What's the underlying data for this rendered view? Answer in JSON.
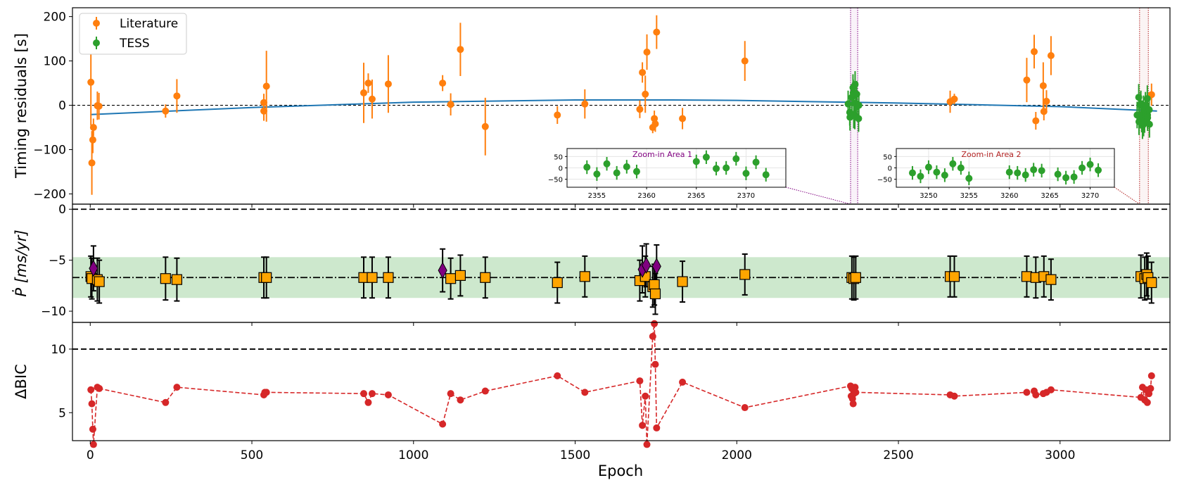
{
  "colors": {
    "literature": "#ff7f0e",
    "tess": "#2ca02c",
    "fit": "#1f77b4",
    "bic": "#d62728",
    "band": "#2ca02c",
    "square": "#ffa500",
    "diamond": "#800080",
    "zoom1": "#800080",
    "zoom2": "#b22222"
  },
  "chart_data": [
    {
      "type": "scatter",
      "panel": "timing-residuals",
      "ylabel": "Timing residuals [s]",
      "ylim": [
        -223,
        220
      ],
      "yticks": [
        "200",
        "100",
        "0",
        "−100",
        "−200"
      ],
      "ytick_values": [
        200,
        100,
        0,
        -100,
        -200
      ],
      "legend": {
        "placement": "top-left",
        "entries": [
          "Literature",
          "TESS"
        ]
      },
      "fit_curve": {
        "x": [
          0,
          500,
          1000,
          1500,
          1800,
          2000,
          2500,
          3000,
          3300
        ],
        "y": [
          -21,
          -5,
          7,
          12,
          12,
          11,
          5,
          -3,
          -13
        ]
      },
      "literature": [
        {
          "x": 2,
          "y": 52,
          "e": 98
        },
        {
          "x": 5,
          "y": -130,
          "e": 72
        },
        {
          "x": 8,
          "y": -78,
          "e": 30
        },
        {
          "x": 10,
          "y": -50,
          "e": 20
        },
        {
          "x": 22,
          "y": -1,
          "e": 32
        },
        {
          "x": 27,
          "y": -2,
          "e": 30
        },
        {
          "x": 233,
          "y": -13,
          "e": 15
        },
        {
          "x": 268,
          "y": 21,
          "e": 38
        },
        {
          "x": 537,
          "y": 6,
          "e": 20
        },
        {
          "x": 537,
          "y": -13,
          "e": 22
        },
        {
          "x": 545,
          "y": 43,
          "e": 80
        },
        {
          "x": 846,
          "y": 28,
          "e": 68
        },
        {
          "x": 860,
          "y": 50,
          "e": 22
        },
        {
          "x": 872,
          "y": 14,
          "e": 44
        },
        {
          "x": 922,
          "y": 48,
          "e": 65
        },
        {
          "x": 1090,
          "y": 50,
          "e": 18
        },
        {
          "x": 1115,
          "y": 2,
          "e": 25
        },
        {
          "x": 1145,
          "y": 126,
          "e": 60
        },
        {
          "x": 1222,
          "y": -48,
          "e": 65
        },
        {
          "x": 1445,
          "y": -22,
          "e": 20
        },
        {
          "x": 1530,
          "y": 3,
          "e": 33
        },
        {
          "x": 1700,
          "y": -9,
          "e": 20
        },
        {
          "x": 1708,
          "y": 74,
          "e": 23
        },
        {
          "x": 1717,
          "y": 25,
          "e": 42
        },
        {
          "x": 1722,
          "y": 120,
          "e": 40
        },
        {
          "x": 1740,
          "y": -50,
          "e": 13
        },
        {
          "x": 1745,
          "y": -30,
          "e": 18
        },
        {
          "x": 1748,
          "y": -42,
          "e": 18
        },
        {
          "x": 1752,
          "y": 165,
          "e": 38
        },
        {
          "x": 1832,
          "y": -30,
          "e": 24
        },
        {
          "x": 2025,
          "y": 100,
          "e": 45
        },
        {
          "x": 2660,
          "y": 8,
          "e": 25
        },
        {
          "x": 2673,
          "y": 14,
          "e": 12
        },
        {
          "x": 2897,
          "y": 57,
          "e": 50
        },
        {
          "x": 2920,
          "y": 121,
          "e": 38
        },
        {
          "x": 2925,
          "y": -35,
          "e": 20
        },
        {
          "x": 2948,
          "y": 44,
          "e": 53
        },
        {
          "x": 2950,
          "y": -14,
          "e": 20
        },
        {
          "x": 2958,
          "y": 9,
          "e": 25
        },
        {
          "x": 2972,
          "y": 112,
          "e": 44
        },
        {
          "x": 3283,
          "y": 24,
          "e": 25
        }
      ],
      "tess_clusters": [
        {
          "x": [
            2354,
            2355,
            2356,
            2357,
            2358,
            2359,
            2365,
            2366,
            2367,
            2368,
            2369,
            2370,
            2371,
            2372
          ],
          "y": [
            3,
            -27,
            18,
            -22,
            5,
            -16,
            28,
            47,
            -3,
            0,
            40,
            -24,
            25,
            -30
          ],
          "e": 30
        },
        {
          "x": [
            3248,
            3249,
            3250,
            3251,
            3252,
            3253,
            3254,
            3255,
            3260,
            3261,
            3262,
            3263,
            3264,
            3266,
            3267,
            3268,
            3269,
            3270,
            3271
          ],
          "y": [
            -22,
            -37,
            3,
            -19,
            -32,
            18,
            0,
            -46,
            -19,
            -22,
            -31,
            -8,
            -12,
            -28,
            -43,
            -40,
            0,
            15,
            -10
          ],
          "e": 30
        }
      ],
      "insets": [
        {
          "title": "Zoom-in Area 1",
          "xlim": [
            2352,
            2374
          ],
          "ylim": [
            -85,
            85
          ],
          "xticks": [
            "2355",
            "2360",
            "2365",
            "2370"
          ],
          "xtick_values": [
            2355,
            2360,
            2365,
            2370
          ],
          "yticks": [
            "50",
            "0",
            "−50"
          ],
          "ytick_values": [
            50,
            0,
            -50
          ],
          "span": [
            2352,
            2374
          ]
        },
        {
          "title": "Zoom-in Area 2",
          "xlim": [
            3246,
            3273
          ],
          "ylim": [
            -85,
            85
          ],
          "xticks": [
            "3250",
            "3255",
            "3260",
            "3265",
            "3270"
          ],
          "xtick_values": [
            3250,
            3255,
            3260,
            3265,
            3270
          ],
          "yticks": [
            "50",
            "0",
            "−50"
          ],
          "ytick_values": [
            50,
            0,
            -50
          ],
          "span": [
            3246,
            3273
          ]
        }
      ]
    },
    {
      "type": "scatter",
      "panel": "period-derivative",
      "ylabel": "Ṗ [ms/yr]",
      "ylim": [
        -11.1,
        0.5
      ],
      "yticks": [
        "0",
        "−5",
        "−10"
      ],
      "ytick_values": [
        0,
        -5,
        -10
      ],
      "mean": -6.7,
      "band": [
        -8.7,
        -4.7
      ],
      "squares": [
        {
          "x": 2,
          "y": -6.6,
          "e": 2.0
        },
        {
          "x": 5,
          "y": -6.8,
          "e": 2.0
        },
        {
          "x": 22,
          "y": -6.9,
          "e": 2.1
        },
        {
          "x": 28,
          "y": -7.1,
          "e": 2.1
        },
        {
          "x": 233,
          "y": -6.8,
          "e": 2.1
        },
        {
          "x": 268,
          "y": -6.9,
          "e": 2.1
        },
        {
          "x": 537,
          "y": -6.7,
          "e": 2.0
        },
        {
          "x": 545,
          "y": -6.7,
          "e": 2.0
        },
        {
          "x": 846,
          "y": -6.7,
          "e": 2.0
        },
        {
          "x": 872,
          "y": -6.7,
          "e": 2.0
        },
        {
          "x": 922,
          "y": -6.7,
          "e": 2.0
        },
        {
          "x": 1115,
          "y": -6.8,
          "e": 2.0
        },
        {
          "x": 1145,
          "y": -6.5,
          "e": 2.0
        },
        {
          "x": 1222,
          "y": -6.7,
          "e": 2.0
        },
        {
          "x": 1445,
          "y": -7.2,
          "e": 2.0
        },
        {
          "x": 1530,
          "y": -6.6,
          "e": 2.0
        },
        {
          "x": 1700,
          "y": -7.0,
          "e": 2.0
        },
        {
          "x": 1717,
          "y": -6.6,
          "e": 2.0
        },
        {
          "x": 1740,
          "y": -7.6,
          "e": 2.0
        },
        {
          "x": 1745,
          "y": -7.4,
          "e": 2.0
        },
        {
          "x": 1748,
          "y": -8.3,
          "e": 2.0
        },
        {
          "x": 1832,
          "y": -7.1,
          "e": 2.0
        },
        {
          "x": 2025,
          "y": -6.4,
          "e": 2.0
        },
        {
          "x": 2356,
          "y": -6.7,
          "e": 2.1
        },
        {
          "x": 2362,
          "y": -6.8,
          "e": 2.1
        },
        {
          "x": 2368,
          "y": -6.7,
          "e": 2.1
        },
        {
          "x": 2660,
          "y": -6.6,
          "e": 2.0
        },
        {
          "x": 2673,
          "y": -6.6,
          "e": 2.0
        },
        {
          "x": 2897,
          "y": -6.6,
          "e": 2.0
        },
        {
          "x": 2925,
          "y": -6.7,
          "e": 2.0
        },
        {
          "x": 2950,
          "y": -6.6,
          "e": 2.0
        },
        {
          "x": 2972,
          "y": -6.9,
          "e": 2.0
        },
        {
          "x": 3250,
          "y": -6.6,
          "e": 2.1
        },
        {
          "x": 3262,
          "y": -6.8,
          "e": 2.1
        },
        {
          "x": 3268,
          "y": -6.4,
          "e": 2.1
        },
        {
          "x": 3272,
          "y": -6.7,
          "e": 2.1
        },
        {
          "x": 3283,
          "y": -7.2,
          "e": 2.0
        }
      ],
      "diamonds": [
        {
          "x": 10,
          "y": -5.8,
          "e": 2.2
        },
        {
          "x": 1090,
          "y": -6.0,
          "e": 2.1
        },
        {
          "x": 1708,
          "y": -5.9,
          "e": 2.3
        },
        {
          "x": 1720,
          "y": -5.5,
          "e": 2.1
        },
        {
          "x": 1752,
          "y": -5.6,
          "e": 2.1
        }
      ]
    },
    {
      "type": "line",
      "panel": "delta-bic",
      "ylabel": "ΔBIC",
      "xlabel": "Epoch",
      "ylim": [
        2.8,
        12.1
      ],
      "xlim": [
        -55,
        3340
      ],
      "yticks": [
        "10",
        "5"
      ],
      "ytick_values": [
        10,
        5
      ],
      "xticks": [
        "0",
        "500",
        "1000",
        "1500",
        "2000",
        "2500",
        "3000"
      ],
      "xtick_values": [
        0,
        500,
        1000,
        1500,
        2000,
        2500,
        3000
      ],
      "threshold": 10,
      "x": [
        2,
        5,
        8,
        10,
        22,
        28,
        233,
        268,
        537,
        540,
        545,
        846,
        860,
        872,
        922,
        1090,
        1115,
        1145,
        1222,
        1445,
        1530,
        1700,
        1708,
        1717,
        1722,
        1740,
        1745,
        1748,
        1752,
        1832,
        2025,
        2352,
        2354,
        2356,
        2358,
        2360,
        2362,
        2366,
        2368,
        2660,
        2673,
        2897,
        2920,
        2925,
        2948,
        2958,
        2972,
        3250,
        3255,
        3262,
        3266,
        3270,
        3275,
        3280,
        3283
      ],
      "y": [
        6.8,
        5.7,
        3.7,
        2.5,
        7.0,
        6.9,
        5.8,
        7.0,
        6.4,
        6.6,
        6.6,
        6.5,
        5.8,
        6.5,
        6.4,
        4.1,
        6.5,
        6.0,
        6.7,
        7.9,
        6.6,
        7.5,
        4.0,
        6.3,
        2.5,
        11.0,
        12.0,
        8.8,
        3.8,
        7.4,
        5.4,
        7.1,
        6.3,
        6.9,
        6.1,
        5.7,
        6.5,
        7.0,
        6.6,
        6.4,
        6.3,
        6.6,
        6.7,
        6.4,
        6.5,
        6.6,
        6.8,
        6.2,
        7.0,
        6.0,
        6.8,
        5.8,
        6.5,
        6.9,
        7.9
      ]
    }
  ]
}
